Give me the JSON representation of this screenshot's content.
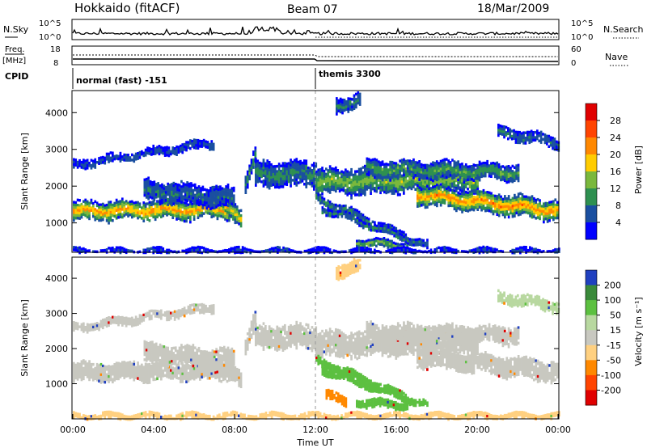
{
  "header": {
    "title": "Hokkaido (fitACF)",
    "beam": "Beam 07",
    "date": "18/Mar/2009"
  },
  "noise_panel": {
    "left_label": "N.Sky",
    "right_label": "N.Search",
    "top_tick": "10^5",
    "bottom_tick": "10^0"
  },
  "freq_panel": {
    "left_label_1": "Freq.",
    "left_label_2": "[MHz]",
    "left_ticks": [
      "18",
      "8"
    ],
    "right_label": "Nave",
    "right_ticks": [
      "60",
      "0"
    ]
  },
  "cpid_panel": {
    "label": "CPID",
    "segments": [
      {
        "start_hour": 0,
        "text": "normal (fast) -151"
      },
      {
        "start_hour": 12,
        "text": "themis 3300"
      }
    ]
  },
  "chart_data": [
    {
      "type": "heatmap",
      "quantity": "power",
      "ylabel": "Slant Range [km]",
      "yticks": [
        1000,
        2000,
        3000,
        4000
      ],
      "ylim": [
        200,
        4600
      ],
      "xlim_hours": [
        0,
        24
      ],
      "colorbar": {
        "label": "Power [dB]",
        "ticks": [
          "28",
          "24",
          "20",
          "16",
          "12",
          "8",
          "4"
        ],
        "colors": [
          "#e00000",
          "#ff4400",
          "#ff8800",
          "#ffcc00",
          "#7ab83c",
          "#2e9050",
          "#1a4fa0",
          "#0000ff"
        ]
      },
      "bands": [
        {
          "t0": 0.0,
          "t1": 7.8,
          "r_start": 1350,
          "r_end": 1400,
          "w": 240,
          "level": 0.72
        },
        {
          "t0": 7.5,
          "t1": 8.3,
          "r_start": 1550,
          "r_end": 1050,
          "w": 220,
          "level": 0.6
        },
        {
          "t0": 0.0,
          "t1": 7.0,
          "r_start": 2600,
          "r_end": 3200,
          "w": 110,
          "level": 0.12
        },
        {
          "t0": 3.5,
          "t1": 8.0,
          "r_start": 1900,
          "r_end": 1700,
          "w": 260,
          "level": 0.2
        },
        {
          "t0": 8.5,
          "t1": 9.0,
          "r_start": 2100,
          "r_end": 2900,
          "w": 220,
          "level": 0.3
        },
        {
          "t0": 9.0,
          "t1": 12.0,
          "r_start": 2350,
          "r_end": 2350,
          "w": 320,
          "level": 0.28
        },
        {
          "t0": 12.0,
          "t1": 20.0,
          "r_start": 2150,
          "r_end": 2200,
          "w": 330,
          "level": 0.45
        },
        {
          "t0": 14.5,
          "t1": 22.0,
          "r_start": 2500,
          "r_end": 2400,
          "w": 220,
          "level": 0.35
        },
        {
          "t0": 17.0,
          "t1": 24.0,
          "r_start": 1800,
          "r_end": 1350,
          "w": 260,
          "level": 0.75
        },
        {
          "t0": 12.0,
          "t1": 16.5,
          "r_start": 1700,
          "r_end": 600,
          "w": 110,
          "level": 0.3
        },
        {
          "t0": 12.3,
          "t1": 17.5,
          "r_start": 1400,
          "r_end": 400,
          "w": 90,
          "level": 0.25
        },
        {
          "t0": 14.0,
          "t1": 16.5,
          "r_start": 500,
          "r_end": 400,
          "w": 100,
          "level": 0.5
        },
        {
          "t0": 21.0,
          "t1": 24.0,
          "r_start": 3500,
          "r_end": 3200,
          "w": 150,
          "level": 0.2
        },
        {
          "t0": 13.0,
          "t1": 14.2,
          "r_start": 4200,
          "r_end": 4400,
          "w": 180,
          "level": 0.25
        },
        {
          "t0": 0.0,
          "t1": 24.0,
          "r_start": 240,
          "r_end": 240,
          "w": 70,
          "level": 0.08
        }
      ]
    },
    {
      "type": "heatmap",
      "quantity": "velocity",
      "ylabel": "Slant Range [km]",
      "yticks": [
        1000,
        2000,
        3000,
        4000
      ],
      "ylim": [
        0,
        4600
      ],
      "xlim_hours": [
        0,
        24
      ],
      "xticks": [
        "00:00",
        "04:00",
        "08:00",
        "12:00",
        "16:00",
        "20:00",
        "00:00"
      ],
      "xlabel": "Time UT",
      "colorbar": {
        "label": "Velocity [m s⁻¹]",
        "ticks": [
          "200",
          "100",
          "50",
          "15",
          "-15",
          "-50",
          "-100",
          "-200"
        ],
        "colors": [
          "#2040c0",
          "#3a8a3a",
          "#5cc040",
          "#b8d8a0",
          "#c8c8c0",
          "#ffd080",
          "#ff8800",
          "#ff4400",
          "#e00000"
        ]
      },
      "bands": [
        {
          "t0": 0.0,
          "t1": 7.8,
          "r_start": 1350,
          "r_end": 1400,
          "w": 240,
          "color": "#c8c8c0"
        },
        {
          "t0": 7.5,
          "t1": 8.3,
          "r_start": 1550,
          "r_end": 1050,
          "w": 220,
          "color": "#c8c8c0"
        },
        {
          "t0": 0.0,
          "t1": 7.0,
          "r_start": 2600,
          "r_end": 3200,
          "w": 110,
          "color": "#c8c8c0"
        },
        {
          "t0": 3.5,
          "t1": 8.0,
          "r_start": 1900,
          "r_end": 1700,
          "w": 260,
          "color": "#c8c8c0"
        },
        {
          "t0": 8.5,
          "t1": 9.0,
          "r_start": 2100,
          "r_end": 2900,
          "w": 220,
          "color": "#c8c8c0"
        },
        {
          "t0": 9.0,
          "t1": 12.0,
          "r_start": 2350,
          "r_end": 2350,
          "w": 320,
          "color": "#c8c8c0"
        },
        {
          "t0": 12.0,
          "t1": 20.0,
          "r_start": 2150,
          "r_end": 2200,
          "w": 330,
          "color": "#c8c8c0"
        },
        {
          "t0": 14.5,
          "t1": 22.0,
          "r_start": 2500,
          "r_end": 2400,
          "w": 220,
          "color": "#c8c8c0"
        },
        {
          "t0": 17.0,
          "t1": 24.0,
          "r_start": 1800,
          "r_end": 1350,
          "w": 260,
          "color": "#c8c8c0"
        },
        {
          "t0": 12.0,
          "t1": 16.5,
          "r_start": 1700,
          "r_end": 600,
          "w": 110,
          "color": "#5cc040"
        },
        {
          "t0": 12.3,
          "t1": 17.5,
          "r_start": 1400,
          "r_end": 400,
          "w": 90,
          "color": "#5cc040"
        },
        {
          "t0": 14.0,
          "t1": 16.5,
          "r_start": 500,
          "r_end": 400,
          "w": 100,
          "color": "#5cc040"
        },
        {
          "t0": 12.5,
          "t1": 13.5,
          "r_start": 700,
          "r_end": 500,
          "w": 120,
          "color": "#ff8800"
        },
        {
          "t0": 21.0,
          "t1": 24.0,
          "r_start": 3500,
          "r_end": 3200,
          "w": 150,
          "color": "#b8d8a0"
        },
        {
          "t0": 13.0,
          "t1": 14.2,
          "r_start": 4200,
          "r_end": 4400,
          "w": 180,
          "color": "#ffd080"
        },
        {
          "t0": 0.0,
          "t1": 24.0,
          "r_start": 100,
          "r_end": 100,
          "w": 70,
          "color": "#ffd080"
        }
      ]
    }
  ]
}
